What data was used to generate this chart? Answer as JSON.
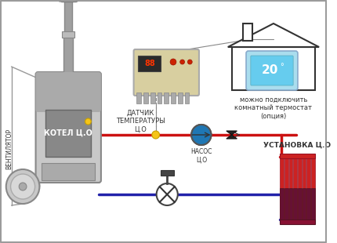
{
  "bg_color": "#ffffff",
  "boiler_label": "КОТЕЛ Ц.О",
  "fan_label": "ВЕНТИЛЯТОР",
  "sensor_label": "ДАТЧИК\nТЕМПЕРАТУРЫ\nЦ.О",
  "pump_label": "НАСОС\nЦ.О",
  "install_label": "УСТАНОВКА Ц.О",
  "thermostat_label": "можно подключить\nкомнатный термостат\n(опция)",
  "pipe_red": "#cc1111",
  "pipe_blue": "#2222aa",
  "boiler_gray1": "#c8c8c8",
  "boiler_gray2": "#aaaaaa",
  "boiler_gray3": "#888888",
  "chimney_gray": "#a0a0a0",
  "controller_bg": "#d8cfa0",
  "house_stroke": "#333333",
  "thermostat_bg": "#5bbfe8",
  "text_color": "#333333",
  "border_color": "#aaaaaa"
}
